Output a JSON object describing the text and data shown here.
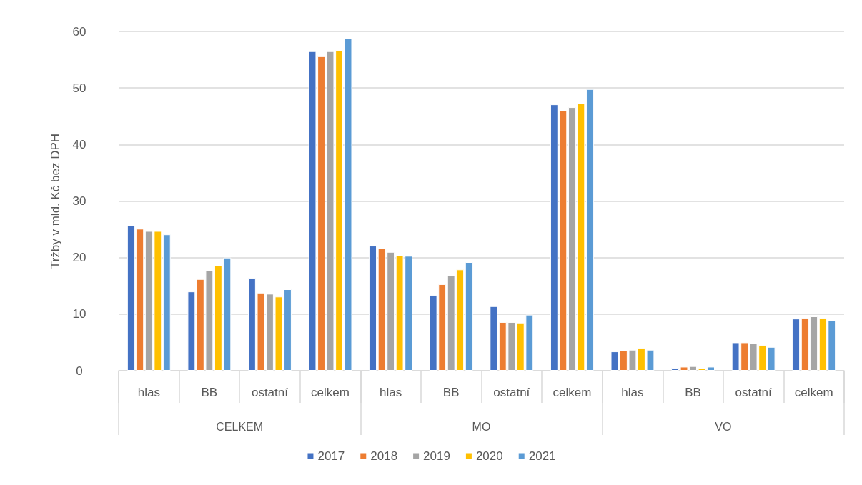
{
  "chart_data": {
    "type": "bar",
    "ylabel": "Tržby v mld. Kč bez DPH",
    "categories": [
      "hlas",
      "BB",
      "ostatní",
      "celkem",
      "hlas",
      "BB",
      "ostatní",
      "celkem",
      "hlas",
      "BB",
      "ostatní",
      "celkem"
    ],
    "annotations": [
      "CELKEM",
      "MO",
      "VO"
    ],
    "series": [
      {
        "name": "2017",
        "color": "#4472c4",
        "values": [
          25.7,
          14.0,
          16.4,
          56.5,
          22.1,
          13.4,
          11.4,
          47.1,
          3.4,
          0.5,
          5.0,
          9.2
        ]
      },
      {
        "name": "2018",
        "color": "#ed7d31",
        "values": [
          25.1,
          16.2,
          13.8,
          55.6,
          21.6,
          15.3,
          8.6,
          46.0,
          3.6,
          0.7,
          5.0,
          9.3
        ]
      },
      {
        "name": "2019",
        "color": "#a5a5a5",
        "values": [
          24.7,
          17.7,
          13.6,
          56.5,
          21.0,
          16.8,
          8.6,
          46.6,
          3.7,
          0.8,
          4.8,
          9.6
        ]
      },
      {
        "name": "2020",
        "color": "#ffc000",
        "values": [
          24.7,
          18.6,
          13.1,
          56.7,
          20.4,
          17.9,
          8.5,
          47.3,
          4.0,
          0.5,
          4.5,
          9.3
        ]
      },
      {
        "name": "2021",
        "color": "#5b9bd5",
        "values": [
          24.1,
          20.0,
          14.4,
          58.8,
          20.3,
          19.2,
          9.9,
          49.8,
          3.7,
          0.7,
          4.2,
          8.9
        ]
      }
    ],
    "ylim": [
      0,
      60
    ],
    "yticks": [
      0,
      10,
      20,
      30,
      40,
      50,
      60
    ],
    "grid": "y",
    "legend": "bottom"
  }
}
